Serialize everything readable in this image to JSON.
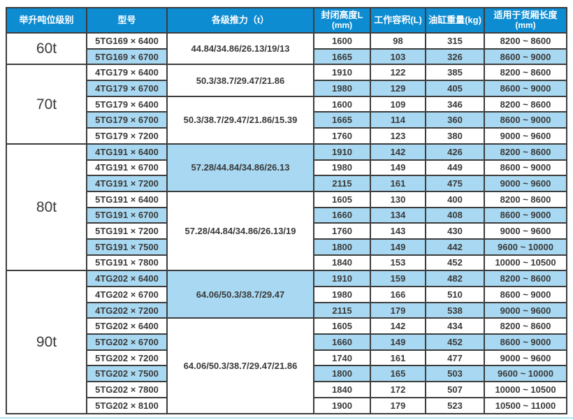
{
  "colors": {
    "header_bg": "#0d8cd2",
    "row_shade": "#a9d9f2",
    "border": "#3c3c3c",
    "text": "#3a3a3a",
    "bottom_line": "#b5e0f2"
  },
  "table": {
    "headers": [
      {
        "line1": "举升吨位级别",
        "line2": ""
      },
      {
        "line1": "型号",
        "line2": ""
      },
      {
        "line1": "各级推力（t）",
        "line2": ""
      },
      {
        "line1": "封闭高度L",
        "line2": "(mm)"
      },
      {
        "line1": "工作容积(L)",
        "line2": ""
      },
      {
        "line1": "油缸重量(kg)",
        "line2": ""
      },
      {
        "line1": "适用于货厢长度",
        "line2": "(mm)"
      }
    ],
    "groups": [
      {
        "tonnage": "60t",
        "blocks": [
          {
            "thrust": "44.84/34.86/26.13/19/13",
            "shaded": false,
            "rows": [
              {
                "model": "5TG169 × 6400",
                "closed_height": "1600",
                "working_volume": "98",
                "weight": "315",
                "box_length": "8200 ~ 8600",
                "shaded": false
              },
              {
                "model": "5TG169 × 6700",
                "closed_height": "1665",
                "working_volume": "103",
                "weight": "326",
                "box_length": "8600 ~ 9000",
                "shaded": true
              }
            ]
          }
        ]
      },
      {
        "tonnage": "70t",
        "blocks": [
          {
            "thrust": "50.3/38.7/29.47/21.86",
            "shaded": false,
            "rows": [
              {
                "model": "4TG179 × 6400",
                "closed_height": "1910",
                "working_volume": "122",
                "weight": "385",
                "box_length": "8200 ~ 8600",
                "shaded": false
              },
              {
                "model": "4TG179 × 6700",
                "closed_height": "1980",
                "working_volume": "129",
                "weight": "405",
                "box_length": "8600 ~ 9000",
                "shaded": true
              }
            ]
          },
          {
            "thrust": "50.3/38.7/29.47/21.86/15.39",
            "shaded": false,
            "rows": [
              {
                "model": "5TG179 × 6400",
                "closed_height": "1600",
                "working_volume": "109",
                "weight": "346",
                "box_length": "8200 ~ 8600",
                "shaded": false
              },
              {
                "model": "5TG179 × 6700",
                "closed_height": "1665",
                "working_volume": "114",
                "weight": "360",
                "box_length": "8600 ~ 9000",
                "shaded": true
              },
              {
                "model": "5TG179 × 7200",
                "closed_height": "1760",
                "working_volume": "123",
                "weight": "380",
                "box_length": "9000 ~ 9600",
                "shaded": false
              }
            ]
          }
        ]
      },
      {
        "tonnage": "80t",
        "blocks": [
          {
            "thrust": "57.28/44.84/34.86/26.13",
            "shaded": true,
            "rows": [
              {
                "model": "4TG191 × 6400",
                "closed_height": "1910",
                "working_volume": "142",
                "weight": "426",
                "box_length": "8200 ~ 8600",
                "shaded": true
              },
              {
                "model": "4TG191 × 6700",
                "closed_height": "1980",
                "working_volume": "149",
                "weight": "449",
                "box_length": "8600 ~ 9000",
                "shaded": false
              },
              {
                "model": "4TG191 × 7200",
                "closed_height": "2115",
                "working_volume": "161",
                "weight": "475",
                "box_length": "9000 ~ 9600",
                "shaded": true
              }
            ]
          },
          {
            "thrust": "57.28/44.84/34.86/26.13/19",
            "shaded": false,
            "rows": [
              {
                "model": "5TG191 × 6400",
                "closed_height": "1605",
                "working_volume": "130",
                "weight": "400",
                "box_length": "8200 ~ 8600",
                "shaded": false
              },
              {
                "model": "5TG191 × 6700",
                "closed_height": "1660",
                "working_volume": "134",
                "weight": "408",
                "box_length": "8600 ~ 9000",
                "shaded": true
              },
              {
                "model": "5TG191 × 7200",
                "closed_height": "1760",
                "working_volume": "143",
                "weight": "430",
                "box_length": "9000 ~ 9600",
                "shaded": false
              },
              {
                "model": "5TG191 × 7500",
                "closed_height": "1800",
                "working_volume": "149",
                "weight": "442",
                "box_length": "9600 ~ 10000",
                "shaded": true
              },
              {
                "model": "5TG191 × 7800",
                "closed_height": "1840",
                "working_volume": "153",
                "weight": "452",
                "box_length": "10000 ~ 10500",
                "shaded": false
              }
            ]
          }
        ]
      },
      {
        "tonnage": "90t",
        "blocks": [
          {
            "thrust": "64.06/50.3/38.7/29.47",
            "shaded": true,
            "rows": [
              {
                "model": "4TG202 × 6400",
                "closed_height": "1910",
                "working_volume": "159",
                "weight": "482",
                "box_length": "8200 ~ 8600",
                "shaded": true
              },
              {
                "model": "4TG202 × 6700",
                "closed_height": "1980",
                "working_volume": "166",
                "weight": "510",
                "box_length": "8600 ~ 9000",
                "shaded": false
              },
              {
                "model": "4TG202 × 7200",
                "closed_height": "2115",
                "working_volume": "179",
                "weight": "538",
                "box_length": "9000 ~ 9600",
                "shaded": true
              }
            ]
          },
          {
            "thrust": "64.06/50.3/38.7/29.47/21.86",
            "shaded": false,
            "rows": [
              {
                "model": "5TG202 × 6400",
                "closed_height": "1605",
                "working_volume": "142",
                "weight": "434",
                "box_length": "8200 ~ 8600",
                "shaded": false
              },
              {
                "model": "5TG202 × 6700",
                "closed_height": "1660",
                "working_volume": "149",
                "weight": "452",
                "box_length": "8600 ~ 9000",
                "shaded": true
              },
              {
                "model": "5TG202 × 7200",
                "closed_height": "1740",
                "working_volume": "161",
                "weight": "477",
                "box_length": "9000 ~ 9600",
                "shaded": false
              },
              {
                "model": "5TG202 × 7500",
                "closed_height": "1800",
                "working_volume": "165",
                "weight": "503",
                "box_length": "9600 ~ 10000",
                "shaded": true
              },
              {
                "model": "5TG202 × 7800",
                "closed_height": "1840",
                "working_volume": "172",
                "weight": "507",
                "box_length": "10000 ~ 10500",
                "shaded": false
              },
              {
                "model": "5TG202 × 8100",
                "closed_height": "1900",
                "working_volume": "179",
                "weight": "523",
                "box_length": "10500 ~ 11000",
                "shaded": false
              }
            ]
          }
        ]
      }
    ]
  }
}
